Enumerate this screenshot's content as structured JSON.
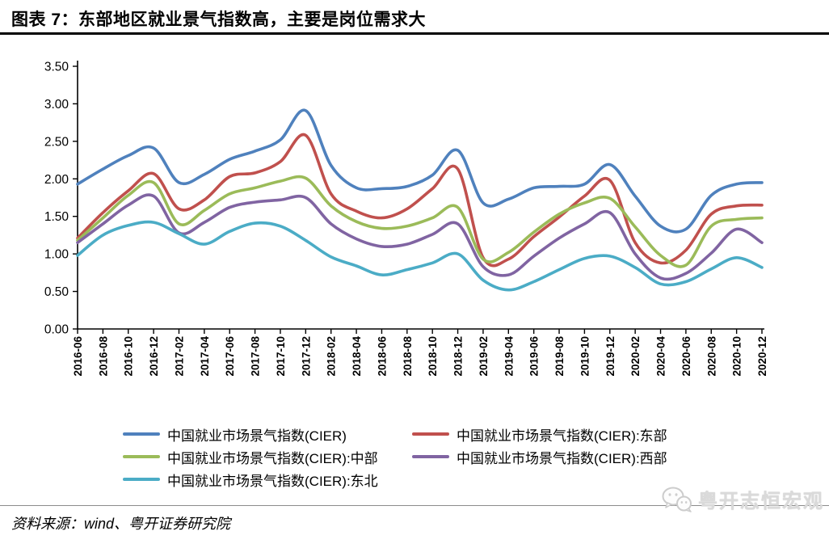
{
  "figure": {
    "title": "图表 7：东部地区就业景气指数高，主要是岗位需求大",
    "source_label": "资料来源：wind、粤开证券研究院",
    "watermark": "粤开志恒宏观"
  },
  "chart_data": {
    "type": "line",
    "title": "",
    "xlabel": "",
    "ylabel": "",
    "grid": false,
    "legend_position": "bottom",
    "ylim": [
      0,
      3.5
    ],
    "y_tick_labels": [
      "0.00",
      "0.50",
      "1.00",
      "1.50",
      "2.00",
      "2.50",
      "3.00",
      "3.50"
    ],
    "x_tick_labels": [
      "2016-06",
      "2016-08",
      "2016-10",
      "2016-12",
      "2017-02",
      "2017-04",
      "2017-06",
      "2017-08",
      "2017-10",
      "2017-12",
      "2018-02",
      "2018-04",
      "2018-06",
      "2018-08",
      "2018-10",
      "2018-12",
      "2019-02",
      "2019-04",
      "2019-06",
      "2019-08",
      "2019-10",
      "2019-12",
      "2020-02",
      "2020-04",
      "2020-06",
      "2020-08",
      "2020-10",
      "2020-12"
    ],
    "series": [
      {
        "name": "中国就业市场景气指数(CIER)",
        "color": "#4f81bd",
        "values": [
          1.93,
          2.13,
          2.31,
          2.41,
          1.95,
          2.06,
          2.26,
          2.37,
          2.52,
          2.91,
          2.18,
          1.88,
          1.87,
          1.9,
          2.05,
          2.38,
          1.68,
          1.73,
          1.88,
          1.9,
          1.93,
          2.19,
          1.77,
          1.37,
          1.33,
          1.78,
          1.93,
          1.95
        ]
      },
      {
        "name": "中国就业市场景气指数(CIER):东部",
        "color": "#c0504d",
        "values": [
          1.21,
          1.55,
          1.84,
          2.07,
          1.6,
          1.72,
          2.03,
          2.08,
          2.23,
          2.58,
          1.8,
          1.57,
          1.48,
          1.6,
          1.87,
          2.13,
          0.95,
          0.93,
          1.23,
          1.49,
          1.77,
          1.98,
          1.15,
          0.88,
          1.05,
          1.53,
          1.64,
          1.65
        ]
      },
      {
        "name": "中国就业市场景气指数(CIER):中部",
        "color": "#9bbb59",
        "values": [
          1.18,
          1.48,
          1.78,
          1.95,
          1.4,
          1.58,
          1.8,
          1.88,
          1.97,
          2.01,
          1.64,
          1.43,
          1.34,
          1.37,
          1.48,
          1.62,
          0.93,
          1.02,
          1.29,
          1.53,
          1.68,
          1.74,
          1.36,
          0.98,
          0.85,
          1.37,
          1.46,
          1.48
        ]
      },
      {
        "name": "中国就业市场景气指数(CIER):西部",
        "color": "#8064a2",
        "values": [
          1.15,
          1.4,
          1.65,
          1.77,
          1.28,
          1.42,
          1.62,
          1.69,
          1.72,
          1.75,
          1.4,
          1.2,
          1.1,
          1.13,
          1.26,
          1.4,
          0.83,
          0.72,
          0.97,
          1.21,
          1.4,
          1.55,
          1.0,
          0.68,
          0.74,
          1.01,
          1.33,
          1.15
        ]
      },
      {
        "name": "中国就业市场景气指数(CIER):东北",
        "color": "#4bacc6",
        "values": [
          0.98,
          1.25,
          1.38,
          1.42,
          1.27,
          1.13,
          1.3,
          1.41,
          1.37,
          1.18,
          0.96,
          0.84,
          0.72,
          0.79,
          0.88,
          1.0,
          0.65,
          0.52,
          0.63,
          0.79,
          0.94,
          0.97,
          0.82,
          0.6,
          0.63,
          0.8,
          0.95,
          0.82
        ]
      }
    ]
  }
}
